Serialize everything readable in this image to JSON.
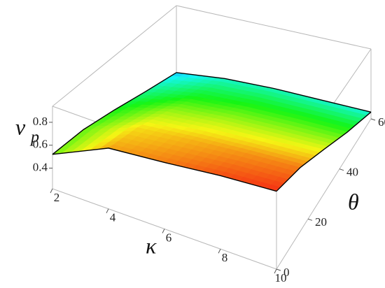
{
  "chart_data": {
    "type": "surface",
    "x_label": "κ",
    "y_label": "θ",
    "z_label": "v",
    "z_label_sub": "p",
    "x": [
      2,
      4,
      6,
      8,
      10
    ],
    "y": [
      0,
      15,
      30,
      45,
      60
    ],
    "z": [
      [
        0.52,
        0.75,
        0.8,
        0.86,
        0.9
      ],
      [
        0.5,
        0.68,
        0.73,
        0.77,
        0.8
      ],
      [
        0.43,
        0.56,
        0.6,
        0.62,
        0.64
      ],
      [
        0.34,
        0.42,
        0.45,
        0.46,
        0.46
      ],
      [
        0.25,
        0.3,
        0.31,
        0.3,
        0.29
      ]
    ],
    "xlim": [
      2,
      10
    ],
    "ylim": [
      0,
      60
    ],
    "zlim": [
      0.22,
      0.94
    ],
    "xticks": [
      2,
      4,
      6,
      8,
      10
    ],
    "yticks": [
      0,
      20,
      40,
      60
    ],
    "zticks": [
      0.4,
      0.6,
      0.8
    ],
    "colormap": "rainbow",
    "edge_color": "#000000",
    "box_color": "#b8b8b8"
  }
}
